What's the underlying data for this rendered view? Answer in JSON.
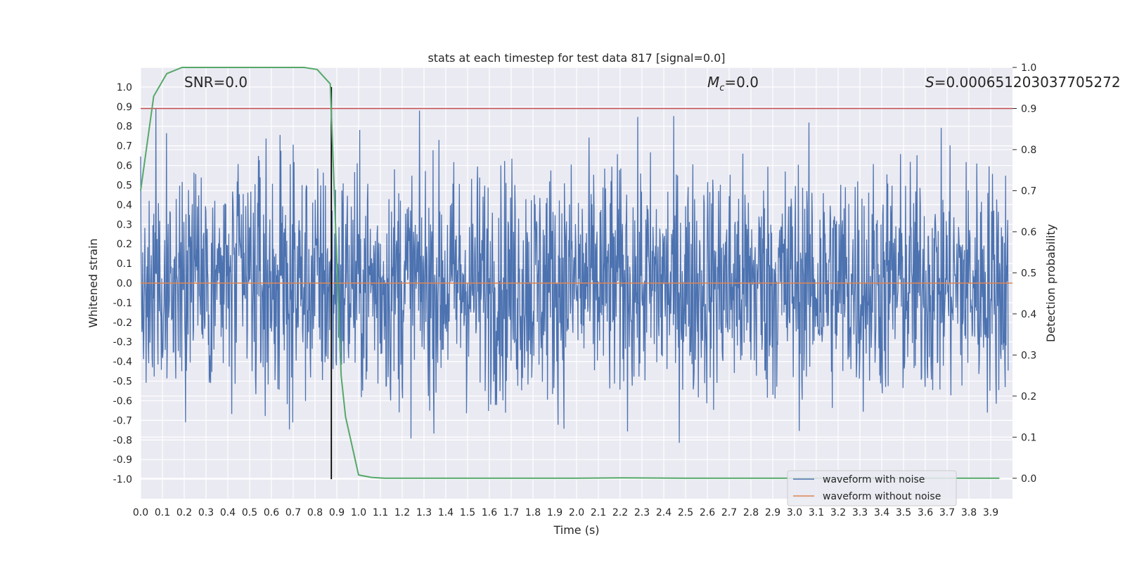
{
  "chart_data": {
    "type": "line",
    "title": "stats at each timestep for test data 817 [signal=0.0]",
    "xlabel": "Time (s)",
    "ylabel": "Whitened strain",
    "ylabel_right": "Detection probability",
    "xlim": [
      0.0,
      4.0
    ],
    "ylim": [
      -1.1,
      1.1
    ],
    "ylim_right": [
      -0.05,
      1.0
    ],
    "x_ticks": [
      "0.0",
      "0.1",
      "0.2",
      "0.3",
      "0.4",
      "0.5",
      "0.6",
      "0.7",
      "0.8",
      "0.9",
      "1.0",
      "1.1",
      "1.2",
      "1.3",
      "1.4",
      "1.5",
      "1.6",
      "1.7",
      "1.8",
      "1.9",
      "2.0",
      "2.1",
      "2.2",
      "2.3",
      "2.4",
      "2.5",
      "2.6",
      "2.7",
      "2.8",
      "2.9",
      "3.0",
      "3.1",
      "3.2",
      "3.3",
      "3.4",
      "3.5",
      "3.6",
      "3.7",
      "3.8",
      "3.9"
    ],
    "y_ticks": [
      "1.0",
      "0.9",
      "0.8",
      "0.7",
      "0.6",
      "0.5",
      "0.4",
      "0.3",
      "0.2",
      "0.1",
      "0.0",
      "-0.1",
      "-0.2",
      "-0.3",
      "-0.4",
      "-0.5",
      "-0.6",
      "-0.7",
      "-0.8",
      "-0.9",
      "-1.0"
    ],
    "y_ticks_right": [
      "1.0",
      "0.9",
      "0.8",
      "0.7",
      "0.6",
      "0.5",
      "0.4",
      "0.3",
      "0.2",
      "0.1",
      "0.0"
    ],
    "annotations": {
      "snr": "SNR=0.0",
      "mc": "=0.0",
      "mc_symbol": "M",
      "mc_sub": "c",
      "s": "=0.000651203037705272",
      "s_symbol": "S"
    },
    "threshold": {
      "value": 0.9,
      "axis": "right",
      "color": "#c44e52"
    },
    "vertical_marker": {
      "x": 0.875,
      "color": "#000000"
    },
    "noise_series": {
      "name": "waveform with noise",
      "color": "#4c72b0",
      "amplitude_range": [
        -0.97,
        0.99
      ],
      "n_samples": 2048
    },
    "clean_series": {
      "name": "waveform without noise",
      "color": "#dd8452",
      "value": 0.0
    },
    "probability_series": {
      "name": "detection probability",
      "color": "#55a868",
      "x": [
        0.0,
        0.06,
        0.12,
        0.19,
        0.25,
        0.5,
        0.75,
        0.81,
        0.87,
        0.92,
        0.94,
        1.0,
        1.06,
        1.12,
        1.5,
        2.0,
        2.2,
        2.5,
        3.0,
        3.5,
        3.94
      ],
      "y": [
        0.7,
        0.93,
        0.985,
        1.0,
        1.0,
        1.0,
        1.0,
        0.995,
        0.96,
        0.25,
        0.15,
        0.008,
        0.002,
        0.0,
        0.0,
        0.0,
        0.001,
        0.0,
        0.0,
        0.0,
        0.0
      ]
    },
    "legend": {
      "position": "bottom-right",
      "entries": [
        "waveform with noise",
        "waveform without noise"
      ]
    }
  }
}
